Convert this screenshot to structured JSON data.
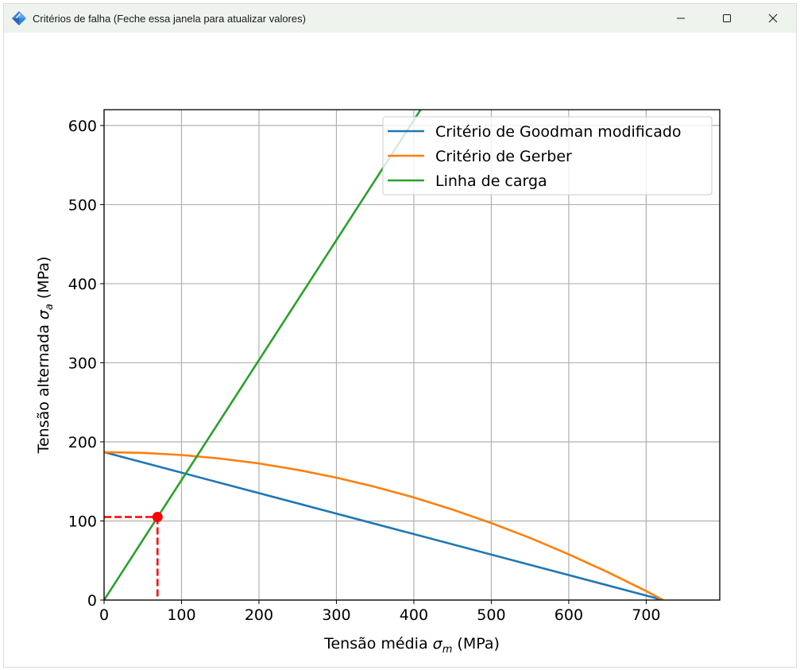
{
  "window": {
    "title": "Critérios de falha (Feche essa janela para atualizar valores)",
    "minimize_icon": "minimize-icon",
    "maximize_icon": "maximize-icon",
    "close_icon": "close-icon"
  },
  "chart_data": {
    "type": "line",
    "xlabel_prefix": "Tensão média ",
    "xlabel_symbol": "σ",
    "xlabel_sub": "m",
    "xlabel_suffix": " (MPa)",
    "ylabel_prefix": "Tensão alternada ",
    "ylabel_symbol": "σ",
    "ylabel_sub": "a",
    "ylabel_suffix": " (MPa)",
    "xlim": [
      0,
      795
    ],
    "ylim": [
      0,
      620
    ],
    "xticks": [
      0,
      100,
      200,
      300,
      400,
      500,
      600,
      700
    ],
    "yticks": [
      0,
      100,
      200,
      300,
      400,
      500,
      600
    ],
    "grid": true,
    "legend_position": "top-right",
    "series": [
      {
        "name": "Critério de Goodman modificado",
        "color": "#1f77b4",
        "x": [
          0,
          722
        ],
        "y": [
          187,
          0
        ]
      },
      {
        "name": "Critério de Gerber",
        "color": "#ff7f0e",
        "x": [
          0,
          50,
          100,
          150,
          200,
          250,
          300,
          350,
          400,
          450,
          500,
          550,
          600,
          650,
          700,
          722
        ],
        "y": [
          187,
          186.1,
          183.4,
          178.9,
          172.7,
          164.6,
          154.7,
          143.1,
          129.7,
          114.4,
          97.4,
          78.6,
          57.9,
          35.5,
          11.4,
          0
        ]
      },
      {
        "name": "Linha de carga",
        "color": "#2ca02c",
        "x": [
          0,
          410
        ],
        "y": [
          0,
          622
        ]
      }
    ],
    "operating_point": {
      "x": 69,
      "y": 105,
      "color": "#ff0000"
    }
  }
}
